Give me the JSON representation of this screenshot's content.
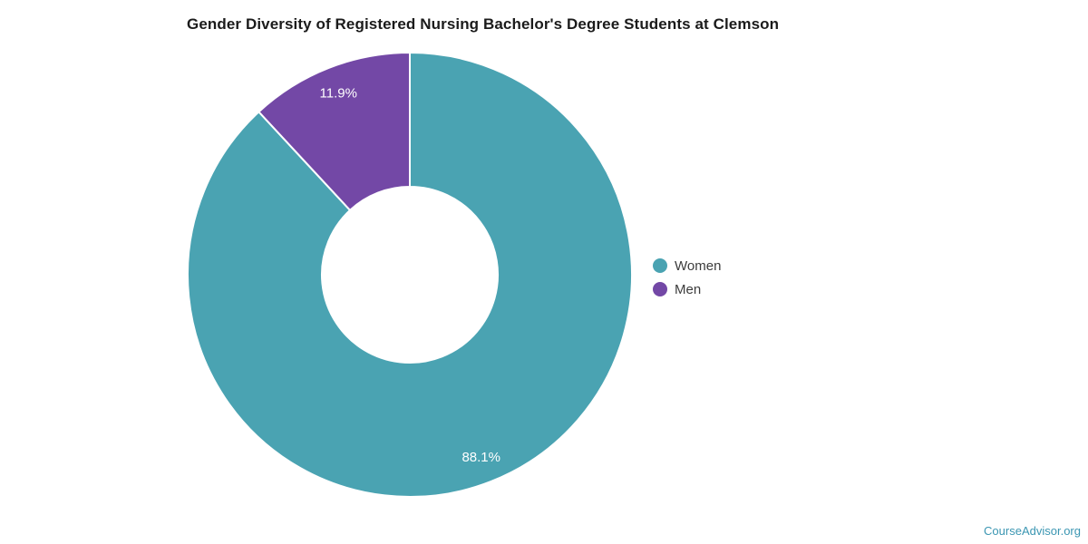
{
  "title": "Gender Diversity of Registered Nursing Bachelor's Degree Students at Clemson",
  "chart_data": {
    "type": "pie",
    "subtype": "donut",
    "title": "Gender Diversity of Registered Nursing Bachelor's Degree Students at Clemson",
    "categories": [
      "Women",
      "Men"
    ],
    "values": [
      88.1,
      11.9
    ],
    "value_labels": [
      "88.1%",
      "11.9%"
    ],
    "colors": [
      "#4AA3B2",
      "#7348A6"
    ],
    "unit": "%",
    "start_angle_deg": 0,
    "direction": "clockwise",
    "outer_radius_px": 245,
    "inner_radius_ratio": 0.396,
    "label_radius_ratio": 0.88,
    "slice_border_color": "#ffffff",
    "slice_border_width": 2,
    "legend_position": "right-center",
    "legend_entries": [
      "Women",
      "Men"
    ]
  },
  "legend": {
    "items": [
      {
        "label": "Women",
        "color": "#4AA3B2"
      },
      {
        "label": "Men",
        "color": "#7348A6"
      }
    ]
  },
  "footer": {
    "link_text": "CourseAdvisor.org",
    "link_color": "#3B96B2"
  }
}
